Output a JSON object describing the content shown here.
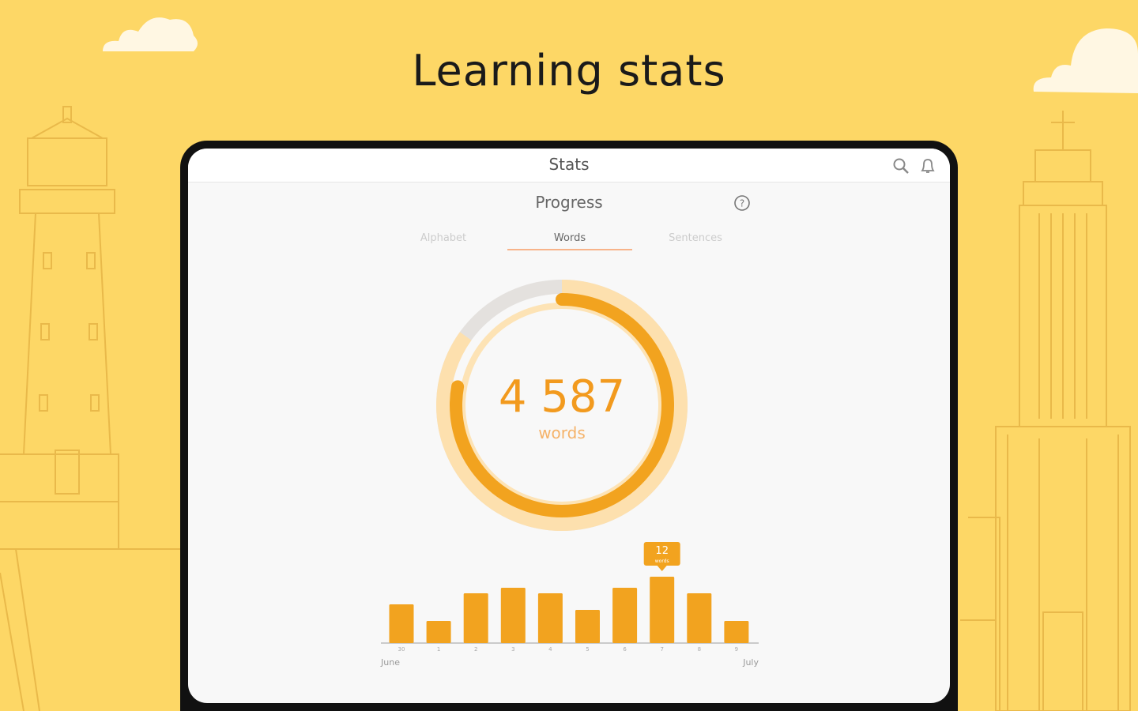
{
  "headline": "Learning stats",
  "app": {
    "title": "Stats",
    "icons": {
      "search": "search-icon",
      "notifications": "bell-icon",
      "help": "help-icon"
    },
    "section_title": "Progress",
    "tabs": [
      {
        "label": "Alphabet",
        "active": false
      },
      {
        "label": "Words",
        "active": true
      },
      {
        "label": "Sentences",
        "active": false
      }
    ],
    "total": {
      "value": "4 587",
      "unit": "words"
    },
    "colors": {
      "accent": "#F2A31F",
      "ring_light": "#FDE0AE",
      "ring_gray": "#E4E1DE",
      "background": "#FDD766"
    }
  },
  "chart_data": {
    "type": "bar",
    "categories": [
      "30",
      "1",
      "2",
      "3",
      "4",
      "5",
      "6",
      "7",
      "8",
      "9"
    ],
    "values": [
      7,
      4,
      9,
      10,
      9,
      6,
      10,
      12,
      9,
      4
    ],
    "month_start": "June",
    "month_end": "July",
    "highlight": {
      "category": "7",
      "value": "12",
      "label": "words"
    },
    "grid": false
  }
}
